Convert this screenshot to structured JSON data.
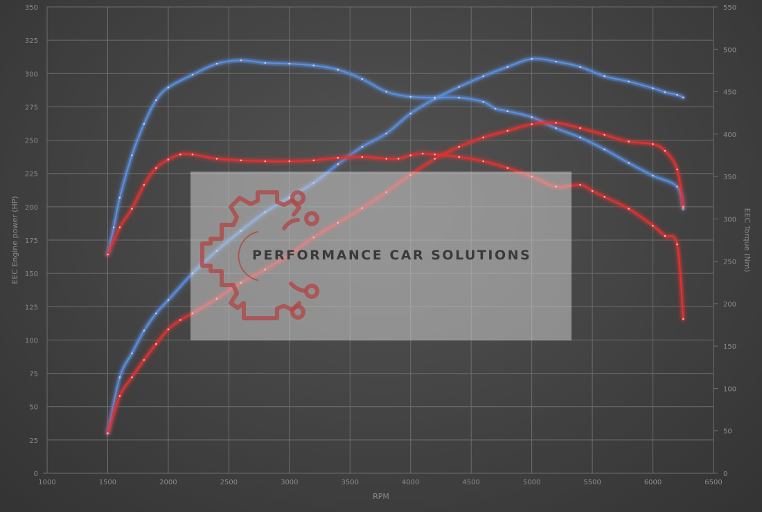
{
  "chart_data": {
    "type": "line",
    "title": "",
    "xlabel": "RPM",
    "ylabel": "EEC Engine power (HP)",
    "y2label": "EEC Torque (Nm)",
    "xlim": [
      1000,
      6500
    ],
    "ylim": [
      0,
      350
    ],
    "y2lim": [
      0,
      550
    ],
    "xticks": [
      1000,
      1500,
      2000,
      2500,
      3000,
      3500,
      4000,
      4500,
      5000,
      5500,
      6000,
      6500
    ],
    "yticks": [
      0,
      25,
      50,
      75,
      100,
      125,
      150,
      175,
      200,
      225,
      250,
      275,
      300,
      325,
      350
    ],
    "y2ticks": [
      0,
      50,
      100,
      150,
      200,
      250,
      300,
      350,
      400,
      450,
      500,
      550
    ],
    "grid": true,
    "legend": "none",
    "series": [
      {
        "axis": "left",
        "color": "#5b8fe0",
        "x": [
          1500,
          1600,
          1700,
          1800,
          1900,
          2000,
          2200,
          2400,
          2600,
          2800,
          3000,
          3200,
          3400,
          3600,
          3800,
          4000,
          4200,
          4400,
          4600,
          4800,
          5000,
          5200,
          5400,
          5600,
          5800,
          6000,
          6100,
          6200,
          6250
        ],
        "y": [
          30,
          72,
          90,
          107,
          120,
          130,
          150,
          167,
          182,
          196,
          207,
          218,
          232,
          245,
          255,
          270,
          281,
          290,
          298,
          305,
          311,
          309,
          305,
          298,
          294,
          289,
          286,
          284,
          282
        ]
      },
      {
        "axis": "right",
        "color": "#5b8fe0",
        "x": [
          1500,
          1550,
          1600,
          1700,
          1800,
          1900,
          2000,
          2200,
          2400,
          2600,
          2800,
          3000,
          3200,
          3400,
          3600,
          3800,
          4000,
          4200,
          4400,
          4600,
          4700,
          4800,
          5000,
          5200,
          5400,
          5600,
          5800,
          6000,
          6200,
          6250
        ],
        "y": [
          258,
          290,
          325,
          375,
          412,
          440,
          455,
          470,
          483,
          487,
          484,
          483,
          481,
          476,
          465,
          450,
          444,
          443,
          443,
          438,
          430,
          427,
          420,
          407,
          396,
          382,
          366,
          351,
          338,
          312
        ]
      },
      {
        "axis": "left",
        "color": "#e03232",
        "x": [
          1500,
          1600,
          1700,
          1800,
          1900,
          2000,
          2100,
          2200,
          2400,
          2600,
          2800,
          3000,
          3200,
          3400,
          3600,
          3800,
          4000,
          4200,
          4400,
          4600,
          4800,
          5000,
          5200,
          5400,
          5600,
          5800,
          6000,
          6100,
          6200,
          6250
        ],
        "y": [
          30,
          58,
          72,
          85,
          97,
          108,
          115,
          120,
          131,
          143,
          153,
          164,
          177,
          188,
          199,
          211,
          224,
          236,
          245,
          252,
          257,
          262,
          263,
          259,
          254,
          249,
          247,
          242,
          228,
          200
        ]
      },
      {
        "axis": "right",
        "color": "#e03232",
        "x": [
          1500,
          1600,
          1700,
          1800,
          1900,
          2000,
          2100,
          2200,
          2400,
          2600,
          2800,
          3000,
          3200,
          3400,
          3600,
          3800,
          3900,
          4000,
          4100,
          4200,
          4400,
          4600,
          4800,
          5000,
          5200,
          5400,
          5500,
          5600,
          5800,
          6000,
          6100,
          6200,
          6250
        ],
        "y": [
          258,
          290,
          312,
          340,
          360,
          370,
          376,
          376,
          371,
          369,
          368,
          368,
          369,
          372,
          373,
          371,
          371,
          375,
          377,
          376,
          373,
          368,
          360,
          350,
          338,
          340,
          333,
          326,
          312,
          292,
          280,
          270,
          182
        ]
      }
    ]
  },
  "brand": {
    "name": "PERFORMANCE CAR SOLUTIONS",
    "logo": "gear-circuit-logo",
    "logo_color": "#b04848"
  }
}
